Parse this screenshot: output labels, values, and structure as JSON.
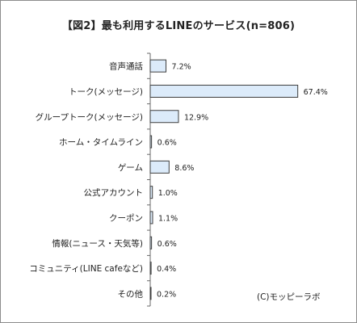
{
  "chart_data": {
    "type": "bar",
    "orientation": "horizontal",
    "title": "【図2】最も利用するLINEのサービス(n=806)",
    "categories": [
      "音声通話",
      "トーク(メッセージ)",
      "グループトーク(メッセージ)",
      "ホーム・タイムライン",
      "ゲーム",
      "公式アカウント",
      "クーポン",
      "情報(ニュース・天気等)",
      "コミュニティ(LINE cafeなど)",
      "その他"
    ],
    "values": [
      7.2,
      67.4,
      12.9,
      0.6,
      8.6,
      1.0,
      1.1,
      0.6,
      0.4,
      0.2
    ],
    "value_labels": [
      "7.2%",
      "67.4%",
      "12.9%",
      "0.6%",
      "8.6%",
      "1.0%",
      "1.1%",
      "0.6%",
      "0.4%",
      "0.2%"
    ],
    "xlim": [
      0,
      70
    ],
    "grid": false,
    "legend": "none",
    "colors": {
      "bar_fill": "#dcebfa",
      "bar_stroke": "#3d3d3d",
      "axis": "#6a6a6a"
    },
    "annotation": "(C)モッピーラボ"
  }
}
